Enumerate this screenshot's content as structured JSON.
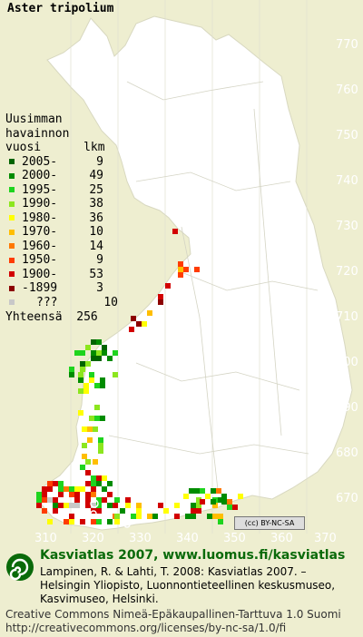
{
  "title": "Aster tripolium",
  "legend": {
    "header": [
      "Uusimman",
      "havainnon",
      "vuosi      lkm"
    ],
    "rows": [
      {
        "label": "2005-",
        "count": "9",
        "color": "#006400"
      },
      {
        "label": "2000-",
        "count": "49",
        "color": "#008c00"
      },
      {
        "label": "1995-",
        "count": "25",
        "color": "#1ed41e"
      },
      {
        "label": "1990-",
        "count": "38",
        "color": "#8ce61e"
      },
      {
        "label": "1980-",
        "count": "36",
        "color": "#ffff00"
      },
      {
        "label": "1970-",
        "count": "10",
        "color": "#ffbe00"
      },
      {
        "label": "1960-",
        "count": "14",
        "color": "#ff7800"
      },
      {
        "label": "1950-",
        "count": "9",
        "color": "#ff3c00"
      },
      {
        "label": "1900-",
        "count": "53",
        "color": "#d20000"
      },
      {
        "label": "-1899",
        "count": "3",
        "color": "#8c0000"
      },
      {
        "label": "???",
        "count": "10",
        "color": "#c8c8c8"
      }
    ],
    "total_label": "Yhteensä",
    "total_count": "256"
  },
  "axes": {
    "y_ticks": [
      "770",
      "760",
      "750",
      "740",
      "730",
      "720",
      "710",
      "700",
      "690",
      "680",
      "670"
    ],
    "x_ticks": [
      "310",
      "320",
      "330",
      "340",
      "350",
      "360",
      "370"
    ]
  },
  "license_badge": "(cc) BY-NC-SA",
  "footer": {
    "atlas_title": "Kasviatlas 2007, www.luomus.fi/kasviatlas",
    "citation": [
      "Lampinen, R. & Lahti, T. 2008: Kasviatlas 2007. –",
      "Helsingin Yliopisto, Luonnontieteellinen keskusmuseo,",
      "Kasvimuseo, Helsinki."
    ],
    "license": [
      "Creative Commons Nimeä-Epäkaupallinen-Tarttuva 1.0 Suomi",
      "http://creativecommons.org/licenses/by-nc-sa/1.0/fi"
    ]
  },
  "colors": {
    "background": "#eeeed0",
    "land": "#ffffff",
    "grid": "#c8c8c8",
    "accent": "#0a6a0a"
  }
}
